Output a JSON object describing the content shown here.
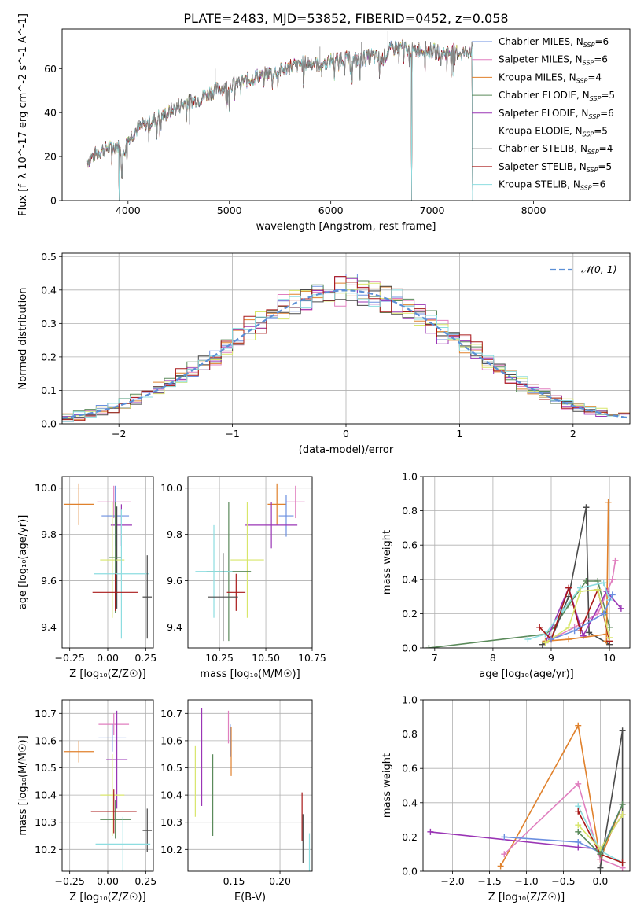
{
  "title": "PLATE=2483, MJD=53852, FIBERID=0452, z=0.058",
  "colors": {
    "Chabrier MILES": "#6b8fe0",
    "Salpeter MILES": "#e07fbf",
    "Kroupa MILES": "#e0812c",
    "Chabrier ELODIE": "#5a8a5a",
    "Salpeter ELODIE": "#9a35b5",
    "Kroupa ELODIE": "#d8e66a",
    "Chabrier STELIB": "#4a4a4a",
    "Salpeter STELIB": "#a81818",
    "Kroupa STELIB": "#8ddde0",
    "normal": "#5b8fd6"
  },
  "chart_data": [
    {
      "id": "spectrum",
      "type": "line",
      "xlabel": "wavelength [Angstrom, rest frame]",
      "ylabel": "Flux [f_λ 10^-17 erg cm^-2 s^-1 A^-1]",
      "xlim": [
        3350,
        8950
      ],
      "ylim": [
        0,
        78
      ],
      "xticks": [
        4000,
        5000,
        6000,
        7000,
        8000
      ],
      "yticks": [
        0,
        20,
        40,
        60
      ],
      "grid": false,
      "legend_position": "top-right",
      "legend": [
        {
          "model": "Chabrier MILES",
          "label": "Chabrier MILES, N",
          "sub": "SSP",
          "tail": "=6"
        },
        {
          "model": "Salpeter MILES",
          "label": "Salpeter MILES, N",
          "sub": "SSP",
          "tail": "=6"
        },
        {
          "model": "Kroupa MILES",
          "label": "Kroupa MILES, N",
          "sub": "SSP",
          "tail": "=4"
        },
        {
          "model": "Chabrier ELODIE",
          "label": "Chabrier ELODIE, N",
          "sub": "SSP",
          "tail": "=5"
        },
        {
          "model": "Salpeter ELODIE",
          "label": "Salpeter ELODIE, N",
          "sub": "SSP",
          "tail": "=6"
        },
        {
          "model": "Kroupa ELODIE",
          "label": "Kroupa ELODIE, N",
          "sub": "SSP",
          "tail": "=5"
        },
        {
          "model": "Chabrier STELIB",
          "label": "Chabrier STELIB, N",
          "sub": "SSP",
          "tail": "=4"
        },
        {
          "model": "Salpeter STELIB",
          "label": "Salpeter STELIB, N",
          "sub": "SSP",
          "tail": "=5"
        },
        {
          "model": "Kroupa STELIB",
          "label": "Kroupa STELIB, N",
          "sub": "SSP",
          "tail": "=6"
        }
      ],
      "continuum": {
        "x": [
          3600,
          3700,
          3800,
          3900,
          3950,
          4000,
          4100,
          4200,
          4300,
          4400,
          4500,
          4600,
          4700,
          4800,
          4900,
          5000,
          5100,
          5200,
          5300,
          5400,
          5500,
          5600,
          5700,
          5800,
          5900,
          6000,
          6100,
          6200,
          6300,
          6400,
          6500,
          6600,
          6700,
          6800,
          6900,
          7000,
          7100,
          7200,
          7300,
          7400
        ],
        "y": [
          18,
          22,
          24,
          25,
          20,
          28,
          33,
          35,
          38,
          40,
          43,
          45,
          46,
          49,
          51,
          52,
          54,
          55,
          57,
          58,
          59,
          61,
          62,
          63,
          62,
          64,
          65,
          64,
          64,
          66,
          64,
          69,
          70,
          68,
          69,
          68,
          67,
          68,
          67,
          69
        ]
      },
      "dropouts": [
        3910,
        6800,
        7400
      ]
    },
    {
      "id": "residuals",
      "type": "step",
      "xlabel": "(data-model)/error",
      "ylabel": "Normed distribution",
      "xlim": [
        -2.5,
        2.5
      ],
      "ylim": [
        0,
        0.51
      ],
      "xticks": [
        -2,
        -1,
        0,
        1,
        2
      ],
      "yticks": [
        0.0,
        0.1,
        0.2,
        0.3,
        0.4,
        0.5
      ],
      "grid": true,
      "legend_position": "top-right",
      "legend_label": "𝒩(0, 1)",
      "bin_width": 0.1
    },
    {
      "id": "age-vs-z",
      "type": "errorbar",
      "xlabel": "Z [log₁₀(Z/Z☉)]",
      "ylabel": "age  [log₁₀(age/yr)]",
      "xlim": [
        -0.3,
        0.3
      ],
      "ylim": [
        9.31,
        10.05
      ],
      "xticks": [
        -0.25,
        0.0,
        0.25
      ],
      "yticks": [
        9.4,
        9.6,
        9.8,
        10.0
      ],
      "grid": true,
      "points": [
        {
          "model": "Kroupa MILES",
          "x": -0.19,
          "xerr": 0.1,
          "y": 9.93,
          "yerr": 0.09
        },
        {
          "model": "Salpeter MILES",
          "x": 0.04,
          "xerr": 0.11,
          "y": 9.94,
          "yerr": 0.07
        },
        {
          "model": "Chabrier MILES",
          "x": 0.05,
          "xerr": 0.09,
          "y": 9.88,
          "yerr": 0.13
        },
        {
          "model": "Salpeter ELODIE",
          "x": 0.09,
          "xerr": 0.07,
          "y": 9.84,
          "yerr": 0.09
        },
        {
          "model": "Chabrier STELIB",
          "x": 0.06,
          "xerr": 0.02,
          "y": 9.7,
          "yerr": 0.22
        },
        {
          "model": "Kroupa ELODIE",
          "x": 0.03,
          "xerr": 0.08,
          "y": 9.69,
          "yerr": 0.25
        },
        {
          "model": "Chabrier ELODIE",
          "x": 0.05,
          "xerr": 0.04,
          "y": 9.7,
          "yerr": 0.24
        },
        {
          "model": "Kroupa STELIB",
          "x": 0.09,
          "xerr": 0.18,
          "y": 9.63,
          "yerr": 0.28
        },
        {
          "model": "Salpeter STELIB",
          "x": 0.05,
          "xerr": 0.15,
          "y": 9.55,
          "yerr": 0.08
        },
        {
          "model": "Chabrier STELIB",
          "x": 0.26,
          "xerr": 0.03,
          "y": 9.53,
          "yerr": 0.18
        }
      ]
    },
    {
      "id": "age-vs-mass",
      "type": "errorbar",
      "xlabel": "mass [log₁₀(M/M☉)]",
      "ylabel": "",
      "xlim": [
        10.08,
        10.75
      ],
      "ylim": [
        9.31,
        10.05
      ],
      "xticks": [
        10.25,
        10.5,
        10.75
      ],
      "yticks": [
        9.4,
        9.6,
        9.8,
        10.0
      ],
      "grid": true,
      "points": [
        {
          "model": "Kroupa MILES",
          "x": 10.56,
          "xerr": 0.05,
          "y": 9.93,
          "yerr": 0.09
        },
        {
          "model": "Salpeter MILES",
          "x": 10.66,
          "xerr": 0.05,
          "y": 9.94,
          "yerr": 0.07
        },
        {
          "model": "Chabrier MILES",
          "x": 10.61,
          "xerr": 0.04,
          "y": 9.88,
          "yerr": 0.09
        },
        {
          "model": "Salpeter ELODIE",
          "x": 10.53,
          "xerr": 0.14,
          "y": 9.84,
          "yerr": 0.1
        },
        {
          "model": "Kroupa ELODIE",
          "x": 10.4,
          "xerr": 0.09,
          "y": 9.69,
          "yerr": 0.25
        },
        {
          "model": "Chabrier ELODIE",
          "x": 10.3,
          "xerr": 0.12,
          "y": 9.64,
          "yerr": 0.3
        },
        {
          "model": "Kroupa STELIB",
          "x": 10.22,
          "xerr": 0.1,
          "y": 9.64,
          "yerr": 0.2
        },
        {
          "model": "Salpeter STELIB",
          "x": 10.34,
          "xerr": 0.05,
          "y": 9.55,
          "yerr": 0.08
        },
        {
          "model": "Chabrier STELIB",
          "x": 10.27,
          "xerr": 0.08,
          "y": 9.53,
          "yerr": 0.19
        }
      ]
    },
    {
      "id": "massweight-vs-age",
      "type": "line",
      "xlabel": "age  [log₁₀(age/yr)]",
      "ylabel": "mass weight",
      "xlim": [
        6.8,
        10.35
      ],
      "ylim": [
        0.0,
        1.0
      ],
      "xticks": [
        7,
        8,
        9,
        10
      ],
      "yticks": [
        0.0,
        0.2,
        0.4,
        0.6,
        0.8,
        1.0
      ],
      "grid": true,
      "series": [
        {
          "model": "Chabrier ELODIE",
          "x": [
            6.9,
            8.9,
            9.05,
            9.3,
            9.6,
            9.8,
            10.0
          ],
          "y": [
            0.0,
            0.08,
            0.12,
            0.25,
            0.39,
            0.39,
            0.12
          ]
        },
        {
          "model": "Chabrier STELIB",
          "x": [
            8.85,
            9.0,
            9.3,
            9.6,
            9.65,
            10.0
          ],
          "y": [
            0.02,
            0.05,
            0.3,
            0.82,
            0.09,
            0.02
          ]
        },
        {
          "model": "Kroupa MILES",
          "x": [
            8.9,
            9.3,
            9.95,
            9.98,
            9.95
          ],
          "y": [
            0.04,
            0.05,
            0.08,
            0.85,
            0.04
          ]
        },
        {
          "model": "Salpeter MILES",
          "x": [
            9.0,
            9.4,
            9.8,
            10.05,
            10.1
          ],
          "y": [
            0.05,
            0.12,
            0.2,
            0.4,
            0.51
          ]
        },
        {
          "model": "Salpeter ELODIE",
          "x": [
            8.9,
            9.3,
            9.55,
            9.95,
            10.2
          ],
          "y": [
            0.03,
            0.35,
            0.07,
            0.33,
            0.23
          ]
        },
        {
          "model": "Kroupa STELIB",
          "x": [
            8.6,
            8.9,
            9.2,
            9.5,
            9.9,
            10.0
          ],
          "y": [
            0.05,
            0.08,
            0.22,
            0.35,
            0.38,
            0.28
          ]
        },
        {
          "model": "Salpeter STELIB",
          "x": [
            8.8,
            9.0,
            9.3,
            9.5,
            9.8,
            10.0
          ],
          "y": [
            0.12,
            0.05,
            0.35,
            0.1,
            0.34,
            0.04
          ]
        },
        {
          "model": "Kroupa ELODIE",
          "x": [
            8.9,
            9.3,
            9.5,
            9.8,
            10.0
          ],
          "y": [
            0.03,
            0.12,
            0.33,
            0.34,
            0.06
          ]
        },
        {
          "model": "Chabrier MILES",
          "x": [
            9.0,
            9.4,
            9.9,
            10.05
          ],
          "y": [
            0.05,
            0.1,
            0.2,
            0.31
          ]
        }
      ]
    },
    {
      "id": "mass-vs-z",
      "type": "errorbar",
      "xlabel": "Z [log₁₀(Z/Z☉)]",
      "ylabel": "mass [log₁₀(M/M☉)]",
      "xlim": [
        -0.3,
        0.3
      ],
      "ylim": [
        10.12,
        10.75
      ],
      "xticks": [
        -0.25,
        0.0,
        0.25
      ],
      "yticks": [
        10.2,
        10.3,
        10.4,
        10.5,
        10.6,
        10.7
      ],
      "grid": true,
      "points": [
        {
          "model": "Salpeter MILES",
          "x": 0.04,
          "xerr": 0.1,
          "y": 10.66,
          "yerr": 0.04
        },
        {
          "model": "Kroupa MILES",
          "x": -0.19,
          "xerr": 0.1,
          "y": 10.56,
          "yerr": 0.04
        },
        {
          "model": "Chabrier MILES",
          "x": 0.03,
          "xerr": 0.09,
          "y": 10.61,
          "yerr": 0.05
        },
        {
          "model": "Salpeter ELODIE",
          "x": 0.06,
          "xerr": 0.07,
          "y": 10.53,
          "yerr": 0.18
        },
        {
          "model": "Kroupa ELODIE",
          "x": 0.03,
          "xerr": 0.08,
          "y": 10.4,
          "yerr": 0.15
        },
        {
          "model": "Chabrier ELODIE",
          "x": 0.05,
          "xerr": 0.1,
          "y": 10.31,
          "yerr": 0.07
        },
        {
          "model": "Salpeter STELIB",
          "x": 0.04,
          "xerr": 0.15,
          "y": 10.34,
          "yerr": 0.08
        },
        {
          "model": "Chabrier STELIB",
          "x": 0.26,
          "xerr": 0.03,
          "y": 10.27,
          "yerr": 0.08
        },
        {
          "model": "Kroupa STELIB",
          "x": 0.1,
          "xerr": 0.18,
          "y": 10.22,
          "yerr": 0.1
        }
      ]
    },
    {
      "id": "mass-vs-ebv",
      "type": "errorbar",
      "xlabel": "E(B-V)",
      "ylabel": "",
      "xlim": [
        0.1,
        0.235
      ],
      "ylim": [
        10.12,
        10.75
      ],
      "xticks": [
        0.15,
        0.2
      ],
      "yticks": [
        10.2,
        10.3,
        10.4,
        10.5,
        10.6,
        10.7
      ],
      "grid": true,
      "points": [
        {
          "model": "Kroupa ELODIE",
          "x": 0.108,
          "yerr": 0.13,
          "y": 10.45
        },
        {
          "model": "Salpeter ELODIE",
          "x": 0.115,
          "yerr": 0.18,
          "y": 10.54
        },
        {
          "model": "Chabrier ELODIE",
          "x": 0.127,
          "yerr": 0.15,
          "y": 10.4
        },
        {
          "model": "Salpeter MILES",
          "x": 0.144,
          "yerr": 0.06,
          "y": 10.65
        },
        {
          "model": "Kroupa MILES",
          "x": 0.147,
          "yerr": 0.09,
          "y": 10.56
        },
        {
          "model": "Chabrier MILES",
          "x": 0.146,
          "yerr": 0.06,
          "y": 10.6
        },
        {
          "model": "Salpeter STELIB",
          "x": 0.224,
          "yerr": 0.09,
          "y": 10.32
        },
        {
          "model": "Chabrier STELIB",
          "x": 0.225,
          "yerr": 0.09,
          "y": 10.24
        },
        {
          "model": "Kroupa STELIB",
          "x": 0.232,
          "yerr": 0.09,
          "y": 10.17
        }
      ]
    },
    {
      "id": "massweight-vs-z",
      "type": "line",
      "xlabel": "Z [log₁₀(Z/Z☉)]",
      "ylabel": "mass weight",
      "xlim": [
        -2.4,
        0.4
      ],
      "ylim": [
        0.0,
        1.0
      ],
      "xticks": [
        -2.0,
        -1.5,
        -1.0,
        -0.5,
        0.0
      ],
      "yticks": [
        0.0,
        0.2,
        0.4,
        0.6,
        0.8,
        1.0
      ],
      "grid": true,
      "series": [
        {
          "model": "Kroupa MILES",
          "x": [
            -1.35,
            -0.3,
            0.0,
            0.3
          ],
          "y": [
            0.03,
            0.85,
            0.07,
            0.39
          ]
        },
        {
          "model": "Salpeter MILES",
          "x": [
            -1.3,
            -0.3,
            0.0,
            0.3
          ],
          "y": [
            0.1,
            0.51,
            0.07,
            0.02
          ]
        },
        {
          "model": "Salpeter ELODIE",
          "x": [
            -2.3,
            -0.3,
            0.0,
            0.3
          ],
          "y": [
            0.23,
            0.14,
            0.13,
            0.33
          ]
        },
        {
          "model": "Chabrier MILES",
          "x": [
            -1.3,
            -0.3,
            0.0,
            0.3
          ],
          "y": [
            0.2,
            0.17,
            0.11,
            0.39
          ]
        },
        {
          "model": "Chabrier STELIB",
          "x": [
            0.0,
            0.3,
            0.3
          ],
          "y": [
            0.02,
            0.82,
            0.05
          ]
        },
        {
          "model": "Kroupa STELIB",
          "x": [
            -0.3,
            0.0,
            0.3
          ],
          "y": [
            0.38,
            0.12,
            0.05
          ]
        },
        {
          "model": "Salpeter STELIB",
          "x": [
            -0.3,
            0.0,
            0.3
          ],
          "y": [
            0.35,
            0.1,
            0.05
          ]
        },
        {
          "model": "Kroupa ELODIE",
          "x": [
            -0.3,
            0.0,
            0.3
          ],
          "y": [
            0.27,
            0.13,
            0.33
          ]
        },
        {
          "model": "Chabrier ELODIE",
          "x": [
            -0.3,
            0.0,
            0.3
          ],
          "y": [
            0.23,
            0.1,
            0.39
          ]
        }
      ]
    }
  ]
}
